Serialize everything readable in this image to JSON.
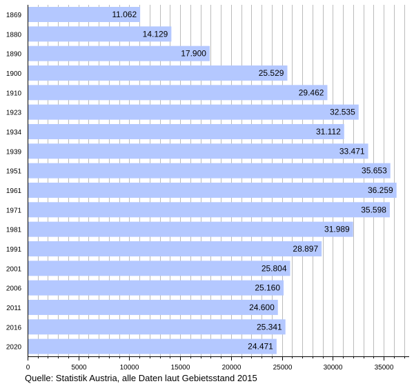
{
  "chart_data": {
    "type": "bar",
    "orientation": "horizontal",
    "categories": [
      "1869",
      "1880",
      "1890",
      "1900",
      "1910",
      "1923",
      "1934",
      "1939",
      "1951",
      "1961",
      "1971",
      "1981",
      "1991",
      "2001",
      "2006",
      "2011",
      "2016",
      "2020"
    ],
    "values": [
      11062,
      14129,
      17900,
      25529,
      29462,
      32535,
      31112,
      33471,
      35653,
      36259,
      35598,
      31989,
      28897,
      25804,
      25160,
      24600,
      25341,
      24471
    ],
    "value_labels": [
      "11.062",
      "14.129",
      "17.900",
      "25.529",
      "29.462",
      "32.535",
      "31.112",
      "33.471",
      "35.653",
      "36.259",
      "35.598",
      "31.989",
      "28.897",
      "25.804",
      "25.160",
      "24.600",
      "25.341",
      "24.471"
    ],
    "x_ticks": [
      0,
      5000,
      10000,
      15000,
      20000,
      25000,
      30000,
      35000
    ],
    "x_tick_labels": [
      "0",
      "5000",
      "10000",
      "15000",
      "20000",
      "25000",
      "30000",
      "35000"
    ],
    "xlim": [
      0,
      37500
    ],
    "minor_tick_step": 1000,
    "grid": "vertical",
    "bar_color": "#b4c8ff",
    "grid_color": "#bbbbbb",
    "title": "",
    "xlabel": "",
    "ylabel": "",
    "source_note": "Quelle: Statistik Austria, alle Daten laut Gebietsstand 2015"
  }
}
